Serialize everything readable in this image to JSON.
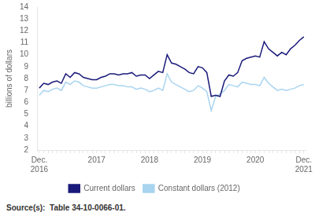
{
  "chart_data": {
    "type": "line",
    "y_label": "billions of dollars",
    "annotations": [
      "Source(s):  Table 34-10-0066-01."
    ],
    "categories": [
      "Dec.\n2016",
      null,
      null,
      null,
      null,
      null,
      null,
      null,
      null,
      null,
      null,
      null,
      null,
      "2017",
      null,
      null,
      null,
      null,
      null,
      null,
      null,
      null,
      null,
      null,
      null,
      "2018",
      null,
      null,
      null,
      null,
      null,
      null,
      null,
      null,
      null,
      null,
      null,
      "2019",
      null,
      null,
      null,
      null,
      null,
      null,
      null,
      null,
      null,
      null,
      null,
      "2020",
      null,
      null,
      null,
      null,
      null,
      null,
      null,
      null,
      null,
      null,
      "Dec.\n2021"
    ],
    "series": [
      {
        "name": "Current dollars",
        "color": "#1a1a7a",
        "values": [
          7.2,
          7.6,
          7.5,
          7.7,
          7.8,
          7.6,
          8.4,
          8.1,
          8.5,
          8.4,
          8.1,
          8.0,
          7.9,
          7.9,
          8.1,
          8.2,
          8.4,
          8.4,
          8.3,
          8.4,
          8.4,
          8.5,
          8.2,
          8.3,
          8.3,
          8.0,
          8.3,
          8.6,
          8.5,
          10.0,
          9.3,
          9.2,
          9.0,
          8.8,
          8.5,
          8.4,
          9.0,
          8.9,
          8.5,
          6.5,
          6.6,
          6.5,
          7.8,
          8.3,
          8.2,
          8.5,
          9.5,
          9.7,
          9.8,
          9.9,
          9.8,
          11.1,
          10.5,
          10.2,
          9.9,
          10.2,
          10.0,
          10.5,
          10.8,
          11.2,
          11.5
        ]
      },
      {
        "name": "Constant dollars (2012)",
        "color": "#a8d4f0",
        "values": [
          6.6,
          7.0,
          6.9,
          7.1,
          7.2,
          7.0,
          7.7,
          7.5,
          7.8,
          7.7,
          7.4,
          7.3,
          7.2,
          7.2,
          7.3,
          7.4,
          7.5,
          7.5,
          7.4,
          7.4,
          7.3,
          7.3,
          7.1,
          7.2,
          7.1,
          6.9,
          7.0,
          7.2,
          7.0,
          8.4,
          7.7,
          7.5,
          7.3,
          7.1,
          6.9,
          7.0,
          7.4,
          7.2,
          6.9,
          5.3,
          6.5,
          6.7,
          7.0,
          7.5,
          7.4,
          7.3,
          7.7,
          7.6,
          7.5,
          7.5,
          7.4,
          8.1,
          7.6,
          7.3,
          7.0,
          7.1,
          7.0,
          7.1,
          7.2,
          7.4,
          7.5
        ]
      }
    ],
    "ylim": [
      2,
      14
    ],
    "yticks": [
      2,
      3,
      4,
      5,
      6,
      7,
      8,
      9,
      10,
      11,
      12,
      13,
      14
    ],
    "grid": false,
    "legend": "bottom"
  }
}
